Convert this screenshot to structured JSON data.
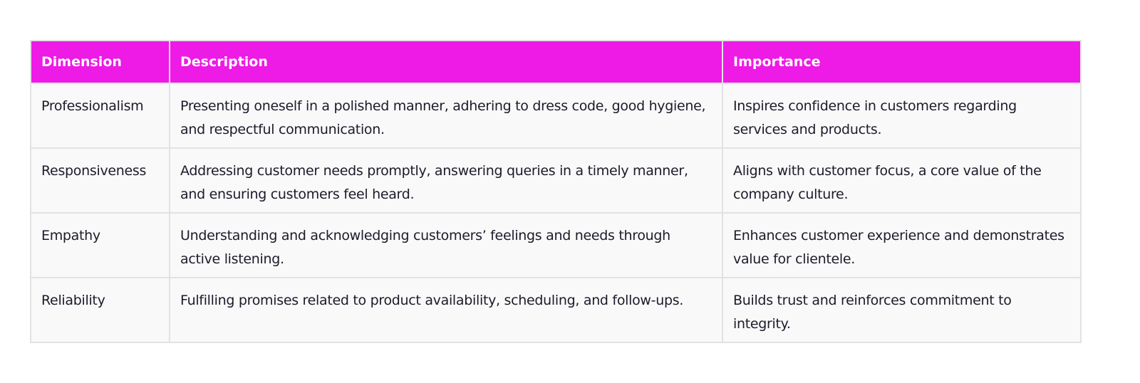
{
  "table": {
    "headers": [
      "Dimension",
      "Description",
      "Importance"
    ],
    "rows": [
      [
        "Professionalism",
        "Presenting oneself in a polished manner, adhering to dress code, good hygiene, and respectful communication.",
        "Inspires confidence in customers regarding services and products."
      ],
      [
        "Responsiveness",
        "Addressing customer needs promptly, answering queries in a timely manner, and ensuring customers feel heard.",
        "Aligns with customer focus, a core value of the company culture."
      ],
      [
        "Empathy",
        "Understanding and acknowledging customers’ feelings and needs through active listening.",
        "Enhances customer experience and demonstrates value for clientele."
      ],
      [
        "Reliability",
        "Fulfilling promises related to product availability, scheduling, and follow-ups.",
        "Builds trust and reinforces commitment to integrity."
      ]
    ]
  },
  "colors": {
    "header_bg": "#ee1ae6",
    "row_bg": "#f9f9f9",
    "border": "#e2e2e2"
  }
}
